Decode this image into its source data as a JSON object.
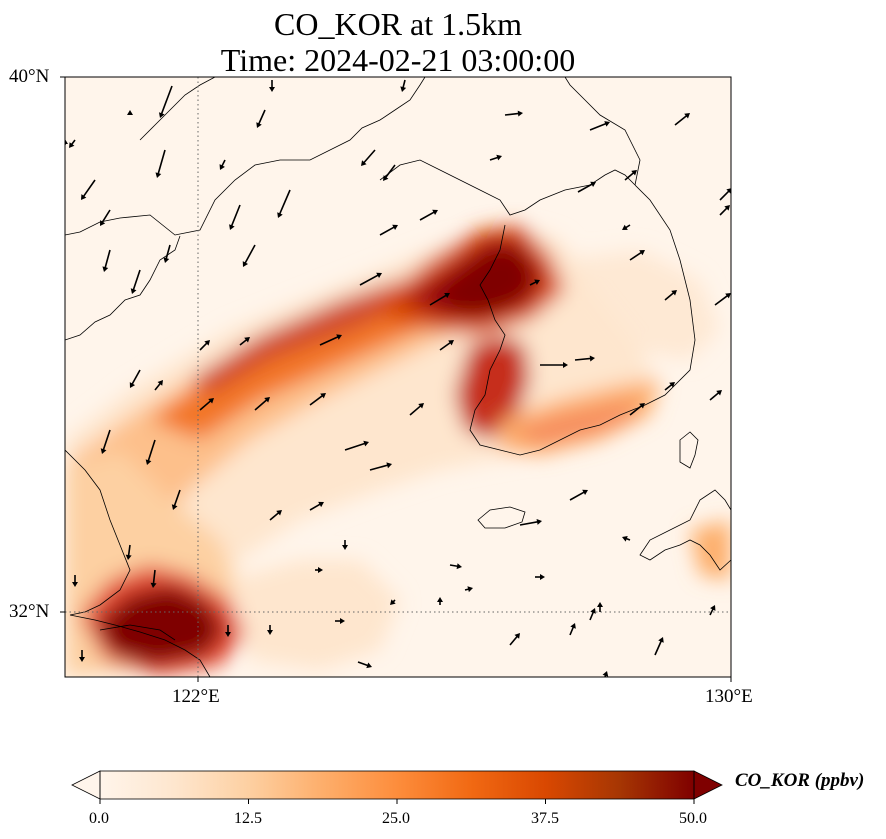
{
  "title": {
    "line1": "CO_KOR at 1.5km",
    "line2": "Time: 2024-02-21 03:00:00"
  },
  "map": {
    "field": "CO_KOR",
    "extent": {
      "lon": [
        119.5,
        130
      ],
      "lat": [
        30.9,
        40
      ]
    },
    "lat_ticks": [
      {
        "value": 40,
        "label": "40°N"
      },
      {
        "value": 32,
        "label": "32°N"
      }
    ],
    "lon_ticks": [
      {
        "value": 122,
        "label": "122°E"
      },
      {
        "value": 130,
        "label": "130°E"
      }
    ],
    "gridlines": {
      "lon": 122,
      "lat": 32,
      "style": "dotted"
    },
    "plumes": [
      {
        "name": "yellow-sea-band",
        "lon": [
          119.5,
          127.3
        ],
        "lat": [
          33.0,
          37.4
        ],
        "peak_ppbv": 38
      },
      {
        "name": "seoul-core",
        "lon": [
          125.8,
          127.4
        ],
        "lat": [
          36.5,
          38.0
        ],
        "peak_ppbv": 55
      },
      {
        "name": "korea-west-coast",
        "lon": [
          125.5,
          126.7
        ],
        "lat": [
          34.3,
          36.5
        ],
        "peak_ppbv": 42
      },
      {
        "name": "korea-south-coast",
        "lon": [
          126.5,
          128.7
        ],
        "lat": [
          34.2,
          35.2
        ],
        "peak_ppbv": 24
      },
      {
        "name": "shanghai-core",
        "lon": [
          120.0,
          122.8
        ],
        "lat": [
          31.1,
          32.5
        ],
        "peak_ppbv": 58
      },
      {
        "name": "kyushu-edge",
        "lon": [
          129.2,
          130.0
        ],
        "lat": [
          32.6,
          33.6
        ],
        "peak_ppbv": 20
      }
    ],
    "wind_arrows": "wind-vectors"
  },
  "colorbar": {
    "title": "CO_KOR (ppbv)",
    "colormap": [
      "#fff5eb",
      "#fee6ce",
      "#fdd0a2",
      "#fdae6b",
      "#fd8d3c",
      "#f16913",
      "#d94801",
      "#a63603",
      "#7f0000"
    ],
    "ticks": [
      "0.0",
      "12.5",
      "25.0",
      "37.5",
      "50.0"
    ],
    "range": [
      0,
      50
    ],
    "extend": "both"
  }
}
